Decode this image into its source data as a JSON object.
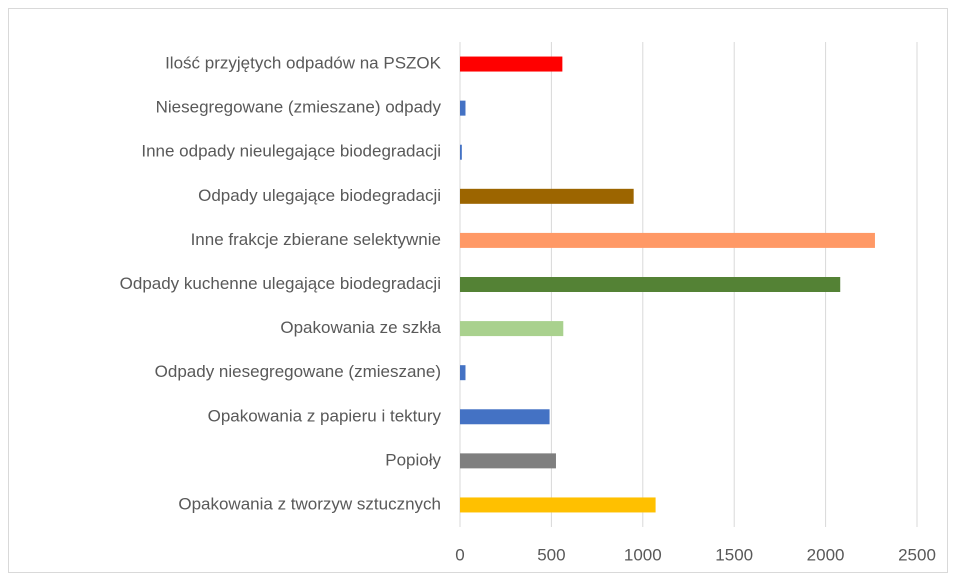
{
  "chart_data": {
    "type": "bar",
    "orientation": "horizontal",
    "categories": [
      "Ilość przyjętych odpadów na PSZOK",
      "Niesegregowane (zmieszane) odpady",
      "Inne odpady nieulegające biodegradacji",
      "Odpady ulegające biodegradacji",
      "Inne frakcje zbierane selektywnie",
      "Odpady kuchenne ulegające biodegradacji",
      "Opakowania ze szkła",
      "Odpady niesegregowane (zmieszane)",
      "Opakowania z papieru i tektury",
      "Popioły",
      "Opakowania z tworzyw sztucznych"
    ],
    "values": [
      560,
      30,
      10,
      950,
      2270,
      2080,
      565,
      30,
      490,
      525,
      1070
    ],
    "colors": [
      "#ff0000",
      "#4472c4",
      "#4472c4",
      "#9c6500",
      "#ff9966",
      "#548235",
      "#a9d18e",
      "#4472c4",
      "#4472c4",
      "#7f7f7f",
      "#ffc000"
    ],
    "xlim": [
      0,
      2500
    ],
    "xticks": [
      0,
      500,
      1000,
      1500,
      2000,
      2500
    ],
    "grid": true
  }
}
